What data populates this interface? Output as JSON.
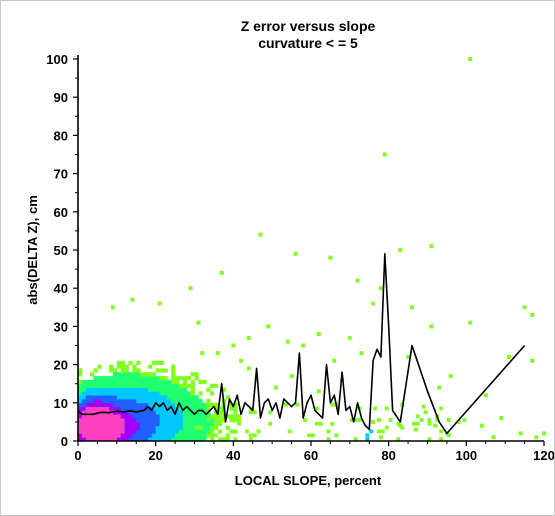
{
  "chart_data": {
    "type": "scatter",
    "title": "Z error versus slope",
    "subtitle": "curvature < = 5",
    "xlabel": "LOCAL SLOPE, percent",
    "ylabel": "abs(DELTA Z), cm",
    "xlim": [
      0,
      120
    ],
    "ylim": [
      0,
      100
    ],
    "x_ticks": [
      0,
      20,
      40,
      60,
      80,
      100,
      120
    ],
    "y_ticks": [
      0,
      10,
      20,
      30,
      40,
      50,
      60,
      70,
      80,
      90,
      100
    ],
    "grid": false,
    "legend": "none",
    "colors": {
      "sparse": "#80ff20",
      "low": "#20ff70",
      "mid": "#00c8ff",
      "midhigh": "#2060ff",
      "high": "#a000ff",
      "peak": "#ff40c0",
      "line": "#000000"
    },
    "density_cores": [
      {
        "x": 4,
        "y": 5,
        "sx": 3.2,
        "sy": 3.8,
        "w": 1.0
      },
      {
        "x": 7,
        "y": 3,
        "sx": 5.0,
        "sy": 3.2,
        "w": 0.7
      },
      {
        "x": 12,
        "y": 6,
        "sx": 8.0,
        "sy": 6.0,
        "w": 0.35
      },
      {
        "x": 22,
        "y": 5,
        "sx": 10.0,
        "sy": 6.0,
        "w": 0.12
      }
    ],
    "outlier_points": [
      [
        101,
        100
      ],
      [
        79,
        75
      ],
      [
        47,
        54
      ],
      [
        91,
        51
      ],
      [
        83,
        50
      ],
      [
        65,
        48
      ],
      [
        56,
        49
      ],
      [
        37,
        44
      ],
      [
        78,
        40
      ],
      [
        72,
        42
      ],
      [
        29,
        40
      ],
      [
        76,
        36
      ],
      [
        86,
        35
      ],
      [
        115,
        35
      ],
      [
        117,
        33
      ],
      [
        101,
        31
      ],
      [
        91,
        30
      ],
      [
        31,
        31
      ],
      [
        49,
        30
      ],
      [
        21,
        36
      ],
      [
        14,
        37
      ],
      [
        9,
        35
      ],
      [
        62,
        28
      ],
      [
        70,
        27
      ],
      [
        54,
        26
      ],
      [
        44,
        27
      ],
      [
        40,
        25
      ],
      [
        36,
        23
      ],
      [
        58,
        25
      ],
      [
        85,
        22
      ],
      [
        111,
        22
      ],
      [
        117,
        21
      ],
      [
        73,
        23
      ],
      [
        66,
        21
      ],
      [
        42,
        21
      ],
      [
        32,
        23
      ],
      [
        96,
        17
      ],
      [
        105,
        12
      ],
      [
        93,
        14
      ],
      [
        89,
        9
      ],
      [
        98,
        5
      ],
      [
        109,
        6
      ],
      [
        120,
        2
      ],
      [
        114,
        2
      ],
      [
        107,
        1
      ],
      [
        118,
        1
      ],
      [
        104,
        4
      ],
      [
        95,
        2
      ],
      [
        83,
        4
      ],
      [
        62,
        13
      ],
      [
        68,
        16
      ],
      [
        55,
        17
      ],
      [
        51,
        14
      ],
      [
        46,
        16
      ],
      [
        44,
        19
      ],
      [
        76,
        5
      ],
      [
        78,
        1
      ],
      [
        87,
        3
      ],
      [
        92,
        4
      ]
    ],
    "mean_line": {
      "name": "",
      "x": [
        0,
        1,
        2,
        3,
        4,
        5,
        6,
        7,
        8,
        9,
        10,
        11,
        12,
        13,
        14,
        15,
        16,
        17,
        18,
        19,
        20,
        21,
        22,
        23,
        24,
        25,
        26,
        27,
        28,
        29,
        30,
        31,
        32,
        33,
        34,
        35,
        36,
        37,
        38,
        39,
        40,
        41,
        42,
        43,
        44,
        45,
        46,
        47,
        48,
        49,
        50,
        51,
        52,
        53,
        54,
        55,
        56,
        57,
        58,
        59,
        60,
        61,
        62,
        63,
        64,
        65,
        66,
        67,
        68,
        69,
        70,
        71,
        72,
        73,
        74,
        75,
        76,
        77,
        78,
        79,
        80,
        81,
        83,
        86,
        90,
        93,
        95,
        115
      ],
      "y": [
        8,
        7,
        7,
        7,
        7,
        7.3,
        7.5,
        7.5,
        7.4,
        7.6,
        7.8,
        7.7,
        7.6,
        7.9,
        7.8,
        7.6,
        7.8,
        8,
        9,
        8,
        10,
        9,
        10,
        8,
        9,
        7,
        10,
        8,
        9,
        8,
        7,
        8,
        8,
        7,
        8,
        9,
        7,
        15,
        5,
        11,
        9,
        12,
        7,
        10,
        9,
        8,
        19,
        6,
        10,
        11,
        8,
        10,
        6,
        11,
        10,
        9,
        10,
        23,
        6,
        10,
        12,
        8,
        7,
        6,
        20,
        10,
        12,
        7,
        18,
        8,
        9,
        5,
        10,
        6,
        4,
        3,
        21,
        24,
        22,
        49,
        30,
        8,
        5,
        25,
        13,
        5,
        2,
        25
      ]
    }
  }
}
